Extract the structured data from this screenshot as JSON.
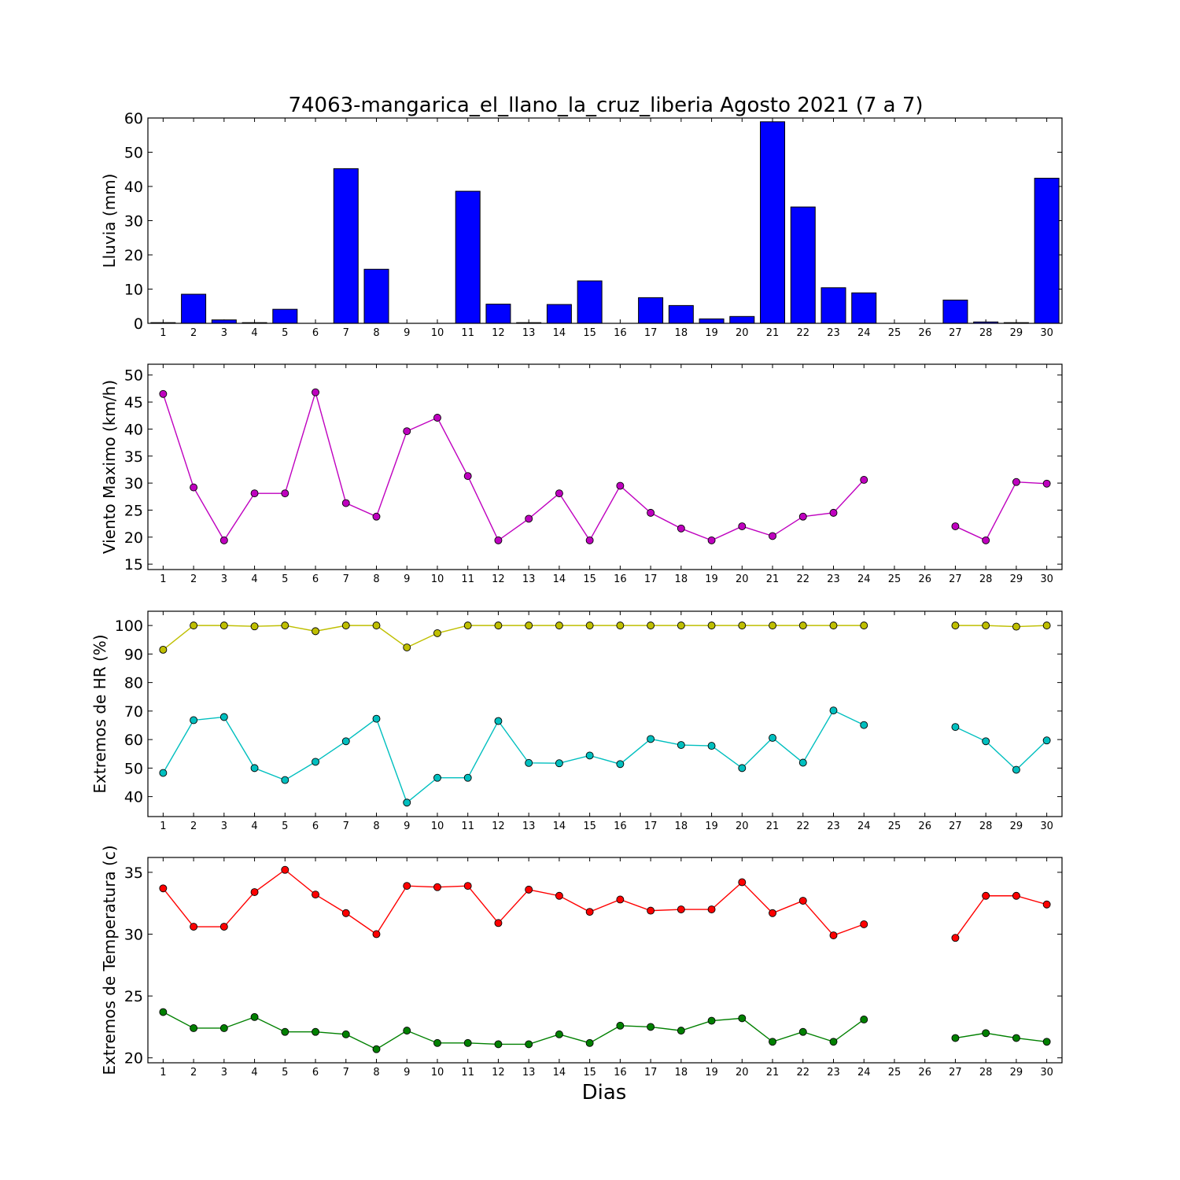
{
  "title": "74063-mangarica_el_llano_la_cruz_liberia Agosto 2021  (7 a 7)",
  "xlabel": "Dias",
  "colors": {
    "rain": "#0000ff",
    "wind": "#bf00bf",
    "hr_max": "#bfbf00",
    "hr_min": "#00bfbf",
    "temp_max": "#ff0000",
    "temp_min": "#008000"
  },
  "chart_data": [
    {
      "type": "bar",
      "ylabel": "Lluvia (mm)",
      "ylim": [
        0,
        60
      ],
      "yticks": [
        0,
        10,
        20,
        30,
        40,
        50,
        60
      ],
      "categories": [
        "1",
        "2",
        "3",
        "4",
        "5",
        "6",
        "7",
        "8",
        "9",
        "10",
        "11",
        "12",
        "13",
        "14",
        "15",
        "16",
        "17",
        "18",
        "19",
        "20",
        "21",
        "22",
        "23",
        "24",
        "25",
        "26",
        "27",
        "28",
        "29",
        "30"
      ],
      "series": [
        {
          "values": [
            0.2,
            8.5,
            1.0,
            0.2,
            4.1,
            0,
            45.2,
            15.8,
            0,
            0,
            38.6,
            5.6,
            0.2,
            5.5,
            12.4,
            0,
            7.5,
            5.2,
            1.3,
            2.0,
            58.9,
            34.0,
            10.4,
            8.9,
            0,
            0,
            6.8,
            0.4,
            0.2,
            42.4
          ]
        }
      ]
    },
    {
      "type": "line",
      "ylabel": "Viento Maximo (km/h)",
      "ylim": [
        14,
        52
      ],
      "yticks": [
        15,
        20,
        25,
        30,
        35,
        40,
        45,
        50
      ],
      "x": [
        1,
        2,
        3,
        4,
        5,
        6,
        7,
        8,
        9,
        10,
        11,
        12,
        13,
        14,
        15,
        16,
        17,
        18,
        19,
        20,
        21,
        22,
        23,
        24,
        25,
        26,
        27,
        28,
        29,
        30
      ],
      "series": [
        {
          "values": [
            46.5,
            29.2,
            19.4,
            28.1,
            28.1,
            46.8,
            26.3,
            23.8,
            39.6,
            42.1,
            31.3,
            19.4,
            23.4,
            28.1,
            19.4,
            29.5,
            24.5,
            21.6,
            19.4,
            22.0,
            20.2,
            23.8,
            24.5,
            30.6,
            null,
            null,
            22.0,
            19.4,
            30.2,
            29.9
          ]
        }
      ]
    },
    {
      "type": "line",
      "ylabel": "Extremos de HR (%)",
      "ylim": [
        33,
        105
      ],
      "yticks": [
        40,
        50,
        60,
        70,
        80,
        90,
        100
      ],
      "x": [
        1,
        2,
        3,
        4,
        5,
        6,
        7,
        8,
        9,
        10,
        11,
        12,
        13,
        14,
        15,
        16,
        17,
        18,
        19,
        20,
        21,
        22,
        23,
        24,
        25,
        26,
        27,
        28,
        29,
        30
      ],
      "series": [
        {
          "values": [
            91.5,
            100,
            100,
            99.7,
            100,
            98.0,
            100,
            100,
            92.3,
            97.3,
            100,
            100,
            100,
            100,
            100,
            100,
            100,
            100,
            100,
            100,
            100,
            100,
            100,
            100,
            null,
            null,
            100,
            100,
            99.6,
            100
          ]
        },
        {
          "values": [
            48.3,
            66.8,
            67.9,
            50.0,
            45.8,
            52.2,
            59.4,
            67.3,
            37.9,
            46.6,
            46.6,
            66.5,
            51.8,
            51.7,
            54.4,
            51.4,
            60.2,
            58.1,
            57.8,
            50.0,
            60.6,
            51.9,
            70.2,
            65.1,
            null,
            null,
            64.4,
            59.4,
            49.4,
            59.7
          ]
        }
      ]
    },
    {
      "type": "line",
      "ylabel": "Extremos de Temperatura (c)",
      "ylim": [
        19.6,
        36.2
      ],
      "yticks": [
        20,
        25,
        30,
        35
      ],
      "x": [
        1,
        2,
        3,
        4,
        5,
        6,
        7,
        8,
        9,
        10,
        11,
        12,
        13,
        14,
        15,
        16,
        17,
        18,
        19,
        20,
        21,
        22,
        23,
        24,
        25,
        26,
        27,
        28,
        29,
        30
      ],
      "series": [
        {
          "values": [
            33.7,
            30.6,
            30.6,
            33.4,
            35.2,
            33.2,
            31.7,
            30.0,
            33.9,
            33.8,
            33.9,
            30.9,
            33.6,
            33.1,
            31.8,
            32.8,
            31.9,
            32.0,
            32.0,
            34.2,
            31.7,
            32.7,
            29.9,
            30.8,
            null,
            null,
            29.7,
            33.1,
            33.1,
            32.4
          ]
        },
        {
          "values": [
            23.7,
            22.4,
            22.4,
            23.3,
            22.1,
            22.1,
            21.9,
            20.7,
            22.2,
            21.2,
            21.2,
            21.1,
            21.1,
            21.9,
            21.2,
            22.6,
            22.5,
            22.2,
            23.0,
            23.2,
            21.3,
            22.1,
            21.3,
            23.1,
            null,
            null,
            21.6,
            22.0,
            21.6,
            21.3
          ]
        }
      ]
    }
  ]
}
